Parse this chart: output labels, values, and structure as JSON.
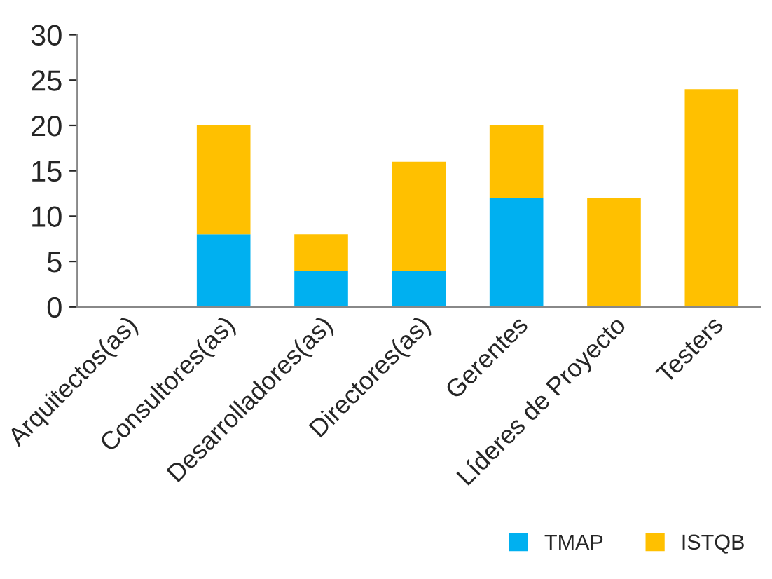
{
  "chart_data": {
    "type": "bar",
    "stacked": true,
    "categories": [
      "Arquitectos(as)",
      "Consultores(as)",
      "Desarrolladores(as)",
      "Directores(as)",
      "Gerentes",
      "Líderes de Proyecto",
      "Testers"
    ],
    "series": [
      {
        "name": "TMAP",
        "color": "#00b0f0",
        "values": [
          0,
          8,
          4,
          4,
          12,
          0,
          0
        ]
      },
      {
        "name": "ISTQB",
        "color": "#ffc000",
        "values": [
          0,
          12,
          4,
          12,
          8,
          12,
          24
        ]
      }
    ],
    "ylim": [
      0,
      30
    ],
    "yticks": [
      0,
      5,
      10,
      15,
      20,
      25,
      30
    ],
    "grid": false,
    "legend": "bottom right"
  }
}
